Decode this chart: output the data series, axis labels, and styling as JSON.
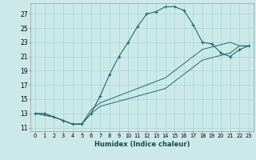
{
  "xlabel": "Humidex (Indice chaleur)",
  "xlim": [
    -0.5,
    23.5
  ],
  "ylim": [
    10.5,
    28.5
  ],
  "yticks": [
    11,
    13,
    15,
    17,
    19,
    21,
    23,
    25,
    27
  ],
  "xticks": [
    0,
    1,
    2,
    3,
    4,
    5,
    6,
    7,
    8,
    9,
    10,
    11,
    12,
    13,
    14,
    15,
    16,
    17,
    18,
    19,
    20,
    21,
    22,
    23
  ],
  "bg_color": "#cce9e9",
  "line_color": "#1a6b6b",
  "grid_color": "#b0d8d8",
  "curve1_x": [
    0,
    1,
    2,
    3,
    4,
    5,
    6,
    7,
    8,
    9,
    10,
    11,
    12,
    13,
    14,
    15,
    16,
    17,
    18,
    19,
    20,
    21,
    22,
    23
  ],
  "curve1_y": [
    13,
    13,
    12.5,
    12.0,
    11.5,
    11.5,
    13.0,
    15.5,
    18.5,
    21.0,
    23.0,
    25.2,
    27.0,
    27.3,
    28.0,
    28.0,
    27.5,
    25.5,
    23.0,
    22.8,
    21.5,
    21.0,
    22.0,
    22.5
  ],
  "curve2_x": [
    0,
    2,
    3,
    4,
    5,
    6,
    7,
    14,
    18,
    21,
    22,
    23
  ],
  "curve2_y": [
    13,
    12.5,
    12.0,
    11.5,
    11.5,
    13.0,
    14.0,
    16.5,
    20.5,
    21.5,
    22.5,
    22.5
  ],
  "curve3_x": [
    0,
    2,
    3,
    4,
    5,
    6,
    7,
    14,
    18,
    21,
    22,
    23
  ],
  "curve3_y": [
    13,
    12.5,
    12.0,
    11.5,
    11.5,
    13.5,
    14.5,
    18.0,
    22.0,
    23.0,
    22.5,
    22.5
  ]
}
